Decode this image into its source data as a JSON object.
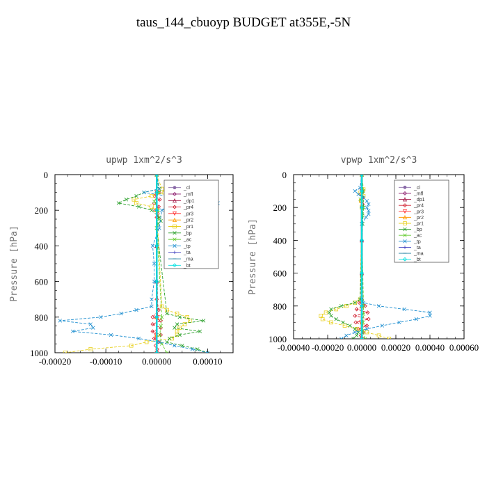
{
  "figure": {
    "title": "taus_144_cbuoyp  BUDGET at355E,-5N"
  },
  "chart_data": [
    {
      "type": "line",
      "title": "upwp   1xm^2/s^3",
      "xlabel": "",
      "ylabel": "Pressure [hPa]",
      "xlim": [
        -0.0002,
        0.00015
      ],
      "ylim": [
        1000,
        0
      ],
      "x_ticks": [
        -0.0002,
        -0.0001,
        0.0,
        0.0001
      ],
      "x_tick_labels": [
        "-0.00020",
        "-0.00010",
        "0.00000",
        "0.00010"
      ],
      "y_ticks": [
        0,
        200,
        400,
        600,
        800,
        1000
      ],
      "y_tick_labels": [
        "0",
        "200",
        "400",
        "600",
        "800",
        "1000"
      ],
      "grid": false,
      "legend_placement": "top-right",
      "series": [
        {
          "name": "_cl",
          "color": "#8a6aa8",
          "marker": "circle",
          "y": [
            0,
            100,
            200,
            400,
            600,
            800,
            1000
          ],
          "x": [
            0,
            0,
            0,
            0,
            0,
            0,
            0
          ]
        },
        {
          "name": "_mfl",
          "color": "#8b1a6b",
          "marker": "diamond",
          "y": [
            0,
            100,
            200,
            400,
            600,
            800,
            1000
          ],
          "x": [
            0,
            0,
            0,
            0,
            0,
            0,
            0
          ]
        },
        {
          "name": "_dp1",
          "color": "#a01040",
          "marker": "triangle",
          "y": [
            0,
            100,
            200,
            400,
            600,
            800,
            1000
          ],
          "x": [
            0,
            0,
            0,
            0,
            0,
            0,
            0
          ]
        },
        {
          "name": "_pr4",
          "color": "#d02030",
          "marker": "diamond",
          "y": [
            0,
            100,
            120,
            140,
            160,
            180,
            200,
            220,
            240,
            700,
            760,
            800,
            820,
            840,
            860,
            880,
            900,
            920,
            940,
            960,
            980,
            1000
          ],
          "x": [
            0,
            5e-06,
            -4e-06,
            6e-06,
            -5e-06,
            4e-06,
            -3e-06,
            2e-06,
            0,
            0,
            4e-06,
            -8e-06,
            8e-06,
            -8e-06,
            8e-06,
            -8e-06,
            8e-06,
            -5e-06,
            4e-06,
            -2e-06,
            1e-06,
            0
          ]
        },
        {
          "name": "_pr3",
          "color": "#ff3030",
          "marker": "triangle-down",
          "y": [
            0,
            100,
            200,
            800,
            900,
            1000
          ],
          "x": [
            0,
            0,
            0,
            2e-06,
            -2e-06,
            0
          ]
        },
        {
          "name": "_pr2",
          "color": "#ff9900",
          "marker": "triangle",
          "y": [
            0,
            100,
            200,
            800,
            900,
            1000
          ],
          "x": [
            0,
            0,
            0,
            0,
            0,
            0
          ]
        },
        {
          "name": "_pr1",
          "color": "#e8d020",
          "marker": "square",
          "y": [
            0,
            80,
            100,
            120,
            140,
            160,
            180,
            200,
            740,
            760,
            780,
            800,
            820,
            840,
            860,
            880,
            900,
            920,
            940,
            960,
            980,
            1000
          ],
          "x": [
            0,
            1e-05,
            1.5e-05,
            -1e-05,
            -4.5e-05,
            -4e-05,
            -1e-05,
            0,
            1e-05,
            2e-05,
            4e-05,
            6e-05,
            6.5e-05,
            5.5e-05,
            4.5e-05,
            4e-05,
            4e-05,
            3e-05,
            -2e-05,
            -5e-05,
            -0.00013,
            -0.00018
          ]
        },
        {
          "name": "_bp",
          "color": "#2ca02c",
          "marker": "x",
          "y": [
            0,
            80,
            100,
            120,
            140,
            160,
            180,
            200,
            240,
            260,
            280,
            300,
            780,
            800,
            820,
            840,
            860,
            880,
            900,
            920,
            940,
            960,
            980,
            1000
          ],
          "x": [
            0,
            5e-06,
            -2.5e-05,
            -4e-05,
            -6e-05,
            -7.5e-05,
            -3.5e-05,
            -1e-05,
            5e-06,
            8e-06,
            2e-06,
            0,
            2e-05,
            4.5e-05,
            9.2e-05,
            4e-05,
            3.5e-05,
            8.5e-05,
            4.5e-05,
            2.5e-05,
            2e-05,
            5e-05,
            8e-05,
            0.0001
          ]
        },
        {
          "name": "_ac",
          "color": "#66cc33",
          "marker": "x",
          "y": [
            0,
            100,
            150,
            200,
            250,
            300,
            800,
            850,
            900,
            950,
            1000
          ],
          "x": [
            0,
            5e-06,
            -5e-06,
            3e-06,
            4e-06,
            0,
            1e-05,
            8e-06,
            6e-06,
            1e-05,
            2e-05
          ]
        },
        {
          "name": "_tp",
          "color": "#1f8fd0",
          "marker": "x",
          "y": [
            0,
            80,
            100,
            120,
            140,
            160,
            180,
            200,
            300,
            400,
            500,
            600,
            700,
            740,
            760,
            780,
            800,
            820,
            840,
            860,
            880,
            900,
            920,
            940,
            960,
            980,
            1000
          ],
          "x": [
            0,
            5e-06,
            -2.5e-05,
            2e-05,
            8e-05,
            0.00012,
            4e-05,
            1e-05,
            5e-06,
            -8e-06,
            -5e-06,
            -5e-06,
            -1e-05,
            -1e-05,
            -4e-05,
            -7e-05,
            -0.00011,
            -0.00019,
            -0.00013,
            -0.000125,
            -0.000165,
            -9e-05,
            -3.5e-05,
            5e-06,
            3.5e-05,
            7e-05,
            0.0001
          ]
        },
        {
          "name": "_ta",
          "color": "#4040c0",
          "marker": "plus",
          "y": [
            0,
            100,
            200,
            400,
            600,
            800,
            1000
          ],
          "x": [
            0,
            0,
            0,
            0,
            0,
            0,
            0
          ]
        },
        {
          "name": "_ma",
          "color": "#2080a0",
          "marker": "dash",
          "y": [
            0,
            100,
            200,
            400,
            600,
            800,
            1000
          ],
          "x": [
            0,
            0,
            0,
            0,
            0,
            0,
            0
          ]
        },
        {
          "name": "_bt",
          "color": "#00e0e0",
          "marker": "diamond",
          "y": [
            0,
            100,
            200,
            400,
            600,
            800,
            1000
          ],
          "x": [
            0,
            0,
            0,
            0,
            0,
            0,
            0
          ]
        }
      ]
    },
    {
      "type": "line",
      "title": "vpwp   1xm^2/s^3",
      "xlabel": "",
      "ylabel": "Pressure [hPa]",
      "xlim": [
        -0.0004,
        0.0006
      ],
      "ylim": [
        1000,
        0
      ],
      "x_ticks": [
        -0.0004,
        -0.0002,
        0.0,
        0.0002,
        0.0004,
        0.0006
      ],
      "x_tick_labels": [
        "-0.00040",
        "-0.00020",
        "0.00000",
        "0.00020",
        "0.00040",
        "0.00060"
      ],
      "y_ticks": [
        0,
        200,
        400,
        600,
        800,
        1000
      ],
      "y_tick_labels": [
        "0",
        "200",
        "400",
        "600",
        "800",
        "1000"
      ],
      "grid": false,
      "legend_placement": "top-right",
      "series": [
        {
          "name": "_cl",
          "color": "#8a6aa8",
          "marker": "circle",
          "y": [
            0,
            100,
            200,
            400,
            600,
            800,
            1000
          ],
          "x": [
            0,
            0,
            0,
            0,
            0,
            0,
            0
          ]
        },
        {
          "name": "_mfl",
          "color": "#8b1a6b",
          "marker": "diamond",
          "y": [
            0,
            100,
            200,
            400,
            600,
            800,
            1000
          ],
          "x": [
            0,
            0,
            0,
            0,
            0,
            0,
            0
          ]
        },
        {
          "name": "_dp1",
          "color": "#a01040",
          "marker": "triangle",
          "y": [
            0,
            100,
            200,
            400,
            600,
            800,
            1000
          ],
          "x": [
            0,
            0,
            0,
            0,
            0,
            0,
            0
          ]
        },
        {
          "name": "_pr4",
          "color": "#d02030",
          "marker": "diamond",
          "y": [
            0,
            100,
            120,
            140,
            160,
            180,
            200,
            760,
            780,
            800,
            820,
            840,
            860,
            880,
            900,
            920,
            940,
            960,
            980,
            1000
          ],
          "x": [
            0,
            6e-06,
            -8e-06,
            6e-06,
            -6e-06,
            5e-06,
            0,
            0,
            -1.5e-05,
            2e-05,
            -3e-05,
            3.5e-05,
            -4e-05,
            4e-05,
            -3.5e-05,
            3e-05,
            -2e-05,
            1e-05,
            -5e-06,
            0
          ]
        },
        {
          "name": "_pr3",
          "color": "#ff3030",
          "marker": "triangle-down",
          "y": [
            0,
            100,
            200,
            800,
            900,
            1000
          ],
          "x": [
            0,
            0,
            0,
            5e-06,
            -5e-06,
            0
          ]
        },
        {
          "name": "_pr2",
          "color": "#ff9900",
          "marker": "triangle",
          "y": [
            0,
            100,
            200,
            800,
            900,
            1000
          ],
          "x": [
            0,
            0,
            0,
            0,
            0,
            0
          ]
        },
        {
          "name": "_pr1",
          "color": "#e8d020",
          "marker": "square",
          "y": [
            0,
            90,
            110,
            130,
            160,
            200,
            760,
            780,
            800,
            820,
            840,
            860,
            880,
            900,
            920,
            940,
            960,
            980,
            1000
          ],
          "x": [
            0,
            1e-05,
            -1e-05,
            1e-05,
            -5e-06,
            0,
            -1e-05,
            -4e-05,
            -9e-05,
            -0.00015,
            -0.00021,
            -0.00024,
            -0.00023,
            -0.00018,
            -0.0001,
            -3e-05,
            3e-05,
            0.0001,
            0.00016
          ]
        },
        {
          "name": "_bp",
          "color": "#2ca02c",
          "marker": "x",
          "y": [
            0,
            100,
            200,
            300,
            760,
            780,
            800,
            820,
            840,
            860,
            880,
            900,
            920,
            940,
            960,
            980,
            1000
          ],
          "x": [
            0,
            8e-06,
            1e-05,
            5e-06,
            -1e-05,
            -4e-05,
            -0.00012,
            -0.00018,
            -0.00019,
            -0.00018,
            -0.00015,
            -0.00011,
            -7e-05,
            -4e-05,
            -2e-05,
            -3e-05,
            -5e-05
          ]
        },
        {
          "name": "_ac",
          "color": "#66cc33",
          "marker": "x",
          "y": [
            0,
            100,
            150,
            200,
            250,
            300,
            800,
            850,
            900,
            950,
            1000
          ],
          "x": [
            0,
            8e-06,
            -8e-06,
            8e-06,
            5e-06,
            0,
            1e-05,
            1e-05,
            8e-06,
            5e-06,
            2e-05
          ]
        },
        {
          "name": "_tp",
          "color": "#1f8fd0",
          "marker": "x",
          "y": [
            0,
            80,
            100,
            120,
            140,
            160,
            180,
            200,
            220,
            240,
            260,
            300,
            760,
            780,
            800,
            820,
            840,
            860,
            880,
            900,
            920,
            940,
            960,
            980,
            1000
          ],
          "x": [
            0,
            -1e-05,
            -4e-05,
            -2e-05,
            1e-05,
            3e-05,
            4e-05,
            3e-05,
            4e-05,
            4e-05,
            2.5e-05,
            0,
            0,
            1e-05,
            0.0001,
            0.00025,
            0.0004,
            0.0004,
            0.00032,
            0.00022,
            0.00012,
            3e-05,
            -4e-05,
            -9e-05,
            -0.00012
          ]
        },
        {
          "name": "_ta",
          "color": "#4040c0",
          "marker": "plus",
          "y": [
            0,
            100,
            200,
            400,
            600,
            800,
            1000
          ],
          "x": [
            0,
            0,
            0,
            0,
            0,
            0,
            0
          ]
        },
        {
          "name": "_ma",
          "color": "#2080a0",
          "marker": "dash",
          "y": [
            0,
            100,
            200,
            400,
            600,
            800,
            1000
          ],
          "x": [
            0,
            0,
            0,
            0,
            0,
            0,
            0
          ]
        },
        {
          "name": "_bt",
          "color": "#00e0e0",
          "marker": "diamond",
          "y": [
            0,
            100,
            200,
            400,
            600,
            800,
            1000
          ],
          "x": [
            0,
            0,
            0,
            0,
            0,
            0,
            0
          ]
        }
      ]
    }
  ]
}
